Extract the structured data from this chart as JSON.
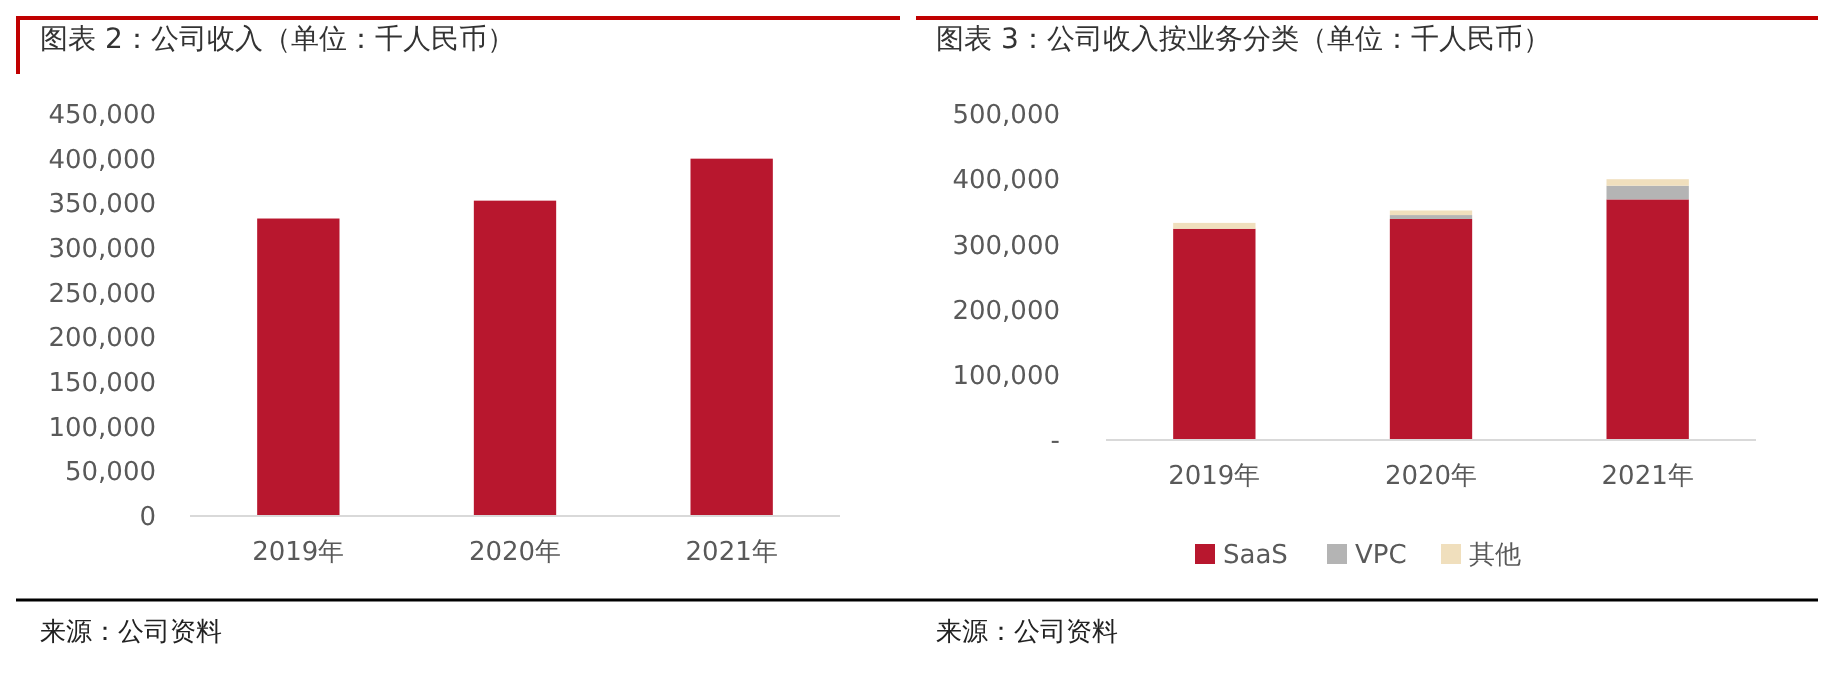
{
  "chart_data": [
    {
      "type": "bar",
      "title": "图表 2：公司收入（单位：千人民币）",
      "categories": [
        "2019年",
        "2020年",
        "2021年"
      ],
      "values": [
        333000,
        353000,
        400000
      ],
      "color": "#b8172e",
      "ylim": [
        0,
        450000
      ],
      "yticks": [
        {
          "value": 0,
          "label": "0"
        },
        {
          "value": 50000,
          "label": "50,000"
        },
        {
          "value": 100000,
          "label": "100,000"
        },
        {
          "value": 150000,
          "label": "150,000"
        },
        {
          "value": 200000,
          "label": "200,000"
        },
        {
          "value": 250000,
          "label": "250,000"
        },
        {
          "value": 300000,
          "label": "300,000"
        },
        {
          "value": 350000,
          "label": "350,000"
        },
        {
          "value": 400000,
          "label": "400,000"
        },
        {
          "value": 450000,
          "label": "450,000"
        }
      ],
      "grid": false,
      "legend": false,
      "annotations": [
        "来源：公司资料"
      ]
    },
    {
      "type": "bar",
      "title": "图表 3：公司收入按业务分类（单位：千人民币）",
      "categories": [
        "2019年",
        "2020年",
        "2021年"
      ],
      "stacked": true,
      "series": [
        {
          "name": "SaaS",
          "color": "#b8172e",
          "values": [
            324000,
            339000,
            369000
          ]
        },
        {
          "name": "VPC",
          "color": "#b4b4b4",
          "values": [
            null,
            6000,
            21000
          ]
        },
        {
          "name": "其他",
          "color": "#f0dfbd",
          "values": [
            9000,
            7000,
            10000
          ]
        }
      ],
      "ylim": [
        0,
        500000
      ],
      "yticks": [
        {
          "value": 0,
          "label": "-"
        },
        {
          "value": 100000,
          "label": "100,000"
        },
        {
          "value": 200000,
          "label": "200,000"
        },
        {
          "value": 300000,
          "label": "300,000"
        },
        {
          "value": 400000,
          "label": "400,000"
        },
        {
          "value": 500000,
          "label": "500,000"
        }
      ],
      "grid": false,
      "legend": "bottom",
      "annotations": [
        "来源：公司资料"
      ]
    }
  ]
}
